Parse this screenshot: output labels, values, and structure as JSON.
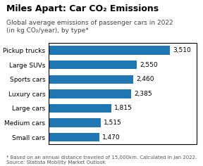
{
  "chart_data": {
    "type": "bar",
    "orientation": "horizontal",
    "title": "Miles Apart: Car CO₂ Emissions",
    "subtitle": "Global average emissions of passenger cars in 2022\n(in kg CO₂/year), by type*",
    "annotations": [
      "* Based on an annual distance traveled of 15,000km. Calculated in Jan 2022.\nSource: Statista Mobility Market Outlook"
    ],
    "categories": [
      "Pickup trucks",
      "Large SUVs",
      "Sports cars",
      "Luxury cars",
      "Large cars",
      "Medium cars",
      "Small cars"
    ],
    "values": [
      3510,
      2550,
      2460,
      2385,
      1815,
      1515,
      1470
    ],
    "value_labels": [
      "3,510",
      "2,550",
      "2,460",
      "2,385",
      "1,815",
      "1,515",
      "1,470"
    ],
    "data_labels": true,
    "xlim": [
      0,
      4300
    ],
    "tick_labels": "y",
    "grid": false
  }
}
